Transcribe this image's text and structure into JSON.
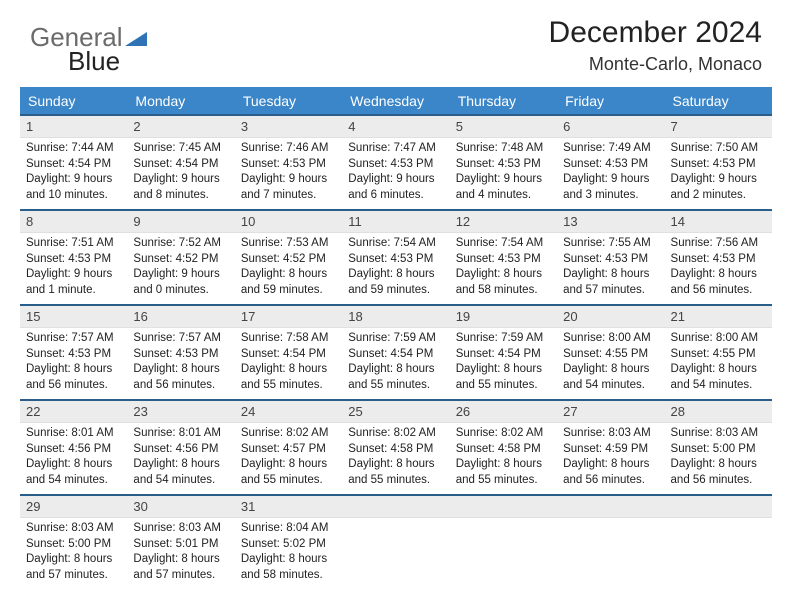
{
  "brand": {
    "word1": "General",
    "word2": "Blue",
    "color1": "#6b6b6b",
    "color2": "#2f73b6"
  },
  "header": {
    "title": "December 2024",
    "subtitle": "Monte-Carlo, Monaco"
  },
  "calendar": {
    "header_bg": "#3a86c8",
    "header_fg": "#ffffff",
    "row_border": "#2a5e8a",
    "daynum_bg": "#ececec",
    "weekdays": [
      "Sunday",
      "Monday",
      "Tuesday",
      "Wednesday",
      "Thursday",
      "Friday",
      "Saturday"
    ],
    "days": [
      {
        "n": "1",
        "sr": "7:44 AM",
        "ss": "4:54 PM",
        "dl": "9 hours and 10 minutes."
      },
      {
        "n": "2",
        "sr": "7:45 AM",
        "ss": "4:54 PM",
        "dl": "9 hours and 8 minutes."
      },
      {
        "n": "3",
        "sr": "7:46 AM",
        "ss": "4:53 PM",
        "dl": "9 hours and 7 minutes."
      },
      {
        "n": "4",
        "sr": "7:47 AM",
        "ss": "4:53 PM",
        "dl": "9 hours and 6 minutes."
      },
      {
        "n": "5",
        "sr": "7:48 AM",
        "ss": "4:53 PM",
        "dl": "9 hours and 4 minutes."
      },
      {
        "n": "6",
        "sr": "7:49 AM",
        "ss": "4:53 PM",
        "dl": "9 hours and 3 minutes."
      },
      {
        "n": "7",
        "sr": "7:50 AM",
        "ss": "4:53 PM",
        "dl": "9 hours and 2 minutes."
      },
      {
        "n": "8",
        "sr": "7:51 AM",
        "ss": "4:53 PM",
        "dl": "9 hours and 1 minute."
      },
      {
        "n": "9",
        "sr": "7:52 AM",
        "ss": "4:52 PM",
        "dl": "9 hours and 0 minutes."
      },
      {
        "n": "10",
        "sr": "7:53 AM",
        "ss": "4:52 PM",
        "dl": "8 hours and 59 minutes."
      },
      {
        "n": "11",
        "sr": "7:54 AM",
        "ss": "4:53 PM",
        "dl": "8 hours and 59 minutes."
      },
      {
        "n": "12",
        "sr": "7:54 AM",
        "ss": "4:53 PM",
        "dl": "8 hours and 58 minutes."
      },
      {
        "n": "13",
        "sr": "7:55 AM",
        "ss": "4:53 PM",
        "dl": "8 hours and 57 minutes."
      },
      {
        "n": "14",
        "sr": "7:56 AM",
        "ss": "4:53 PM",
        "dl": "8 hours and 56 minutes."
      },
      {
        "n": "15",
        "sr": "7:57 AM",
        "ss": "4:53 PM",
        "dl": "8 hours and 56 minutes."
      },
      {
        "n": "16",
        "sr": "7:57 AM",
        "ss": "4:53 PM",
        "dl": "8 hours and 56 minutes."
      },
      {
        "n": "17",
        "sr": "7:58 AM",
        "ss": "4:54 PM",
        "dl": "8 hours and 55 minutes."
      },
      {
        "n": "18",
        "sr": "7:59 AM",
        "ss": "4:54 PM",
        "dl": "8 hours and 55 minutes."
      },
      {
        "n": "19",
        "sr": "7:59 AM",
        "ss": "4:54 PM",
        "dl": "8 hours and 55 minutes."
      },
      {
        "n": "20",
        "sr": "8:00 AM",
        "ss": "4:55 PM",
        "dl": "8 hours and 54 minutes."
      },
      {
        "n": "21",
        "sr": "8:00 AM",
        "ss": "4:55 PM",
        "dl": "8 hours and 54 minutes."
      },
      {
        "n": "22",
        "sr": "8:01 AM",
        "ss": "4:56 PM",
        "dl": "8 hours and 54 minutes."
      },
      {
        "n": "23",
        "sr": "8:01 AM",
        "ss": "4:56 PM",
        "dl": "8 hours and 54 minutes."
      },
      {
        "n": "24",
        "sr": "8:02 AM",
        "ss": "4:57 PM",
        "dl": "8 hours and 55 minutes."
      },
      {
        "n": "25",
        "sr": "8:02 AM",
        "ss": "4:58 PM",
        "dl": "8 hours and 55 minutes."
      },
      {
        "n": "26",
        "sr": "8:02 AM",
        "ss": "4:58 PM",
        "dl": "8 hours and 55 minutes."
      },
      {
        "n": "27",
        "sr": "8:03 AM",
        "ss": "4:59 PM",
        "dl": "8 hours and 56 minutes."
      },
      {
        "n": "28",
        "sr": "8:03 AM",
        "ss": "5:00 PM",
        "dl": "8 hours and 56 minutes."
      },
      {
        "n": "29",
        "sr": "8:03 AM",
        "ss": "5:00 PM",
        "dl": "8 hours and 57 minutes."
      },
      {
        "n": "30",
        "sr": "8:03 AM",
        "ss": "5:01 PM",
        "dl": "8 hours and 57 minutes."
      },
      {
        "n": "31",
        "sr": "8:04 AM",
        "ss": "5:02 PM",
        "dl": "8 hours and 58 minutes."
      }
    ],
    "labels": {
      "sunrise": "Sunrise: ",
      "sunset": "Sunset: ",
      "daylight": "Daylight: "
    }
  }
}
